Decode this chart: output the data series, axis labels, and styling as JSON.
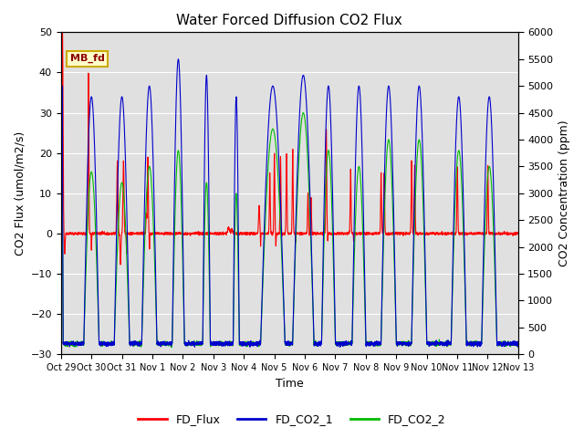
{
  "title": "Water Forced Diffusion CO2 Flux",
  "xlabel": "Time",
  "ylabel_left": "CO2 Flux (umol/m2/s)",
  "ylabel_right": "CO2 Concentration (ppm)",
  "ylim_left": [
    -30,
    50
  ],
  "ylim_right": [
    0,
    6000
  ],
  "yticks_left": [
    -30,
    -20,
    -10,
    0,
    10,
    20,
    30,
    40,
    50
  ],
  "yticks_right": [
    0,
    500,
    1000,
    1500,
    2000,
    2500,
    3000,
    3500,
    4000,
    4500,
    5000,
    5500,
    6000
  ],
  "xtick_positions": [
    0,
    1,
    2,
    3,
    4,
    5,
    6,
    7,
    8,
    9,
    10,
    11,
    12,
    13,
    14,
    15
  ],
  "xtick_labels": [
    "Oct 29",
    "Oct 30",
    "Oct 31",
    "Nov 1",
    "Nov 2",
    "Nov 3",
    "Nov 4",
    "Nov 5",
    "Nov 6",
    "Nov 7",
    "Nov 8",
    "Nov 9",
    "Nov 10",
    "Nov 11",
    "Nov 12",
    "Nov 13"
  ],
  "color_flux": "#ff0000",
  "color_co2_1": "#0000cc",
  "color_co2_2": "#00bb00",
  "legend_labels": [
    "FD_Flux",
    "FD_CO2_1",
    "FD_CO2_2"
  ],
  "annotation_text": "MB_fd",
  "background_color": "#e0e0e0",
  "title_fontsize": 11,
  "lw_flux": 0.8,
  "lw_co2": 0.8
}
